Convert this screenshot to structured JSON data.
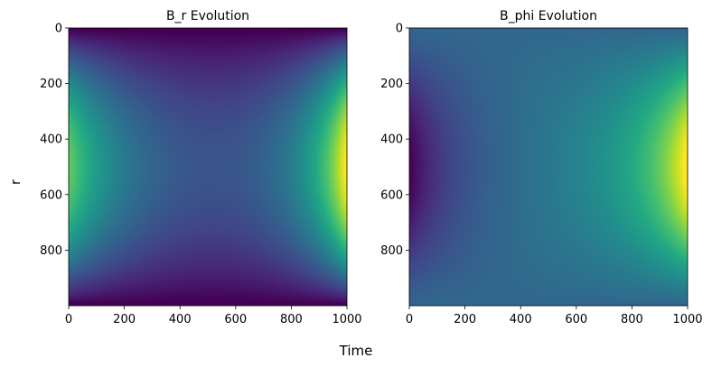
{
  "figure": {
    "xlabel": "Time",
    "ylabel": "r"
  },
  "chart_data": [
    {
      "type": "heatmap",
      "title": "B_r Evolution",
      "xlabel": "",
      "ylabel": "r",
      "xlim": [
        0,
        1000
      ],
      "ylim": [
        1000,
        0
      ],
      "xticks": [
        0,
        200,
        400,
        600,
        800,
        1000
      ],
      "yticks": [
        0,
        200,
        400,
        600,
        800
      ],
      "colormap": "viridis",
      "grid": false,
      "description_values": {
        "left_edge_center_level": 0.55,
        "right_edge_center_level": 1.0,
        "middle_level": 0.15,
        "top_bottom_level": 0.0
      }
    },
    {
      "type": "heatmap",
      "title": "B_phi Evolution",
      "xlabel": "",
      "ylabel": "",
      "xlim": [
        0,
        1000
      ],
      "ylim": [
        1000,
        0
      ],
      "xticks": [
        0,
        200,
        400,
        600,
        800,
        1000
      ],
      "yticks": [
        0,
        200,
        400,
        600,
        800
      ],
      "colormap": "viridis",
      "grid": false,
      "description_values": {
        "left_edge_center_level": 0.0,
        "right_edge_center_level": 1.0,
        "middle_level": 0.38,
        "top_bottom_level": 0.33
      }
    }
  ]
}
